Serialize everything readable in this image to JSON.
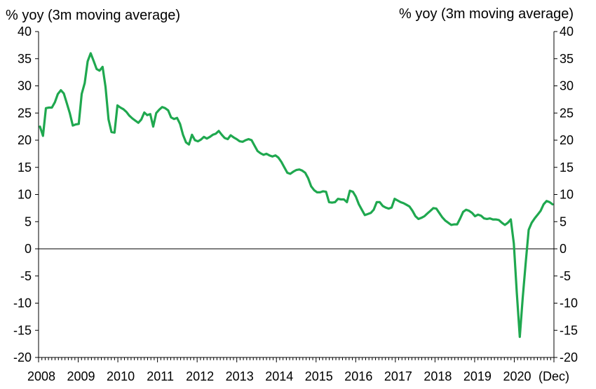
{
  "chart_data": {
    "type": "line",
    "left_axis_label": "% yoy (3m moving average)",
    "right_axis_label": "% yoy (3m moving average)",
    "ylim": [
      -20,
      40
    ],
    "y_ticks": [
      40,
      35,
      30,
      25,
      20,
      15,
      10,
      5,
      0,
      -5,
      -10,
      -15,
      -20
    ],
    "x_tick_labels": [
      "2008",
      "2009",
      "2010",
      "2011",
      "2012",
      "2013",
      "2014",
      "2015",
      "2016",
      "2017",
      "2018",
      "2019",
      "2020",
      "(Dec)"
    ],
    "x_start_year": 2008,
    "x_end_year": 2021,
    "grid": false,
    "zero_line": true,
    "series_color": "#1fa84f",
    "series": [
      {
        "values": [
          22.5,
          20.8,
          25.9,
          26.0,
          26.0,
          27.0,
          28.5,
          29.2,
          28.6,
          26.8,
          25.0,
          22.7,
          22.9,
          23.0,
          28.5,
          30.5,
          34.5,
          36.0,
          34.6,
          33.1,
          32.8,
          33.5,
          29.8,
          23.8,
          21.5,
          21.4,
          26.4,
          26.0,
          25.7,
          25.2,
          24.5,
          24.0,
          23.6,
          23.2,
          23.8,
          25.1,
          24.6,
          24.8,
          22.5,
          25.0,
          25.6,
          26.1,
          25.9,
          25.5,
          24.2,
          23.9,
          24.1,
          23.0,
          21.0,
          19.6,
          19.2,
          21.0,
          20.0,
          19.8,
          20.1,
          20.6,
          20.3,
          20.6,
          21.0,
          21.2,
          21.7,
          21.0,
          20.4,
          20.2,
          20.9,
          20.5,
          20.2,
          19.8,
          19.7,
          20.0,
          20.2,
          20.0,
          19.0,
          18.0,
          17.6,
          17.3,
          17.5,
          17.2,
          17.0,
          17.2,
          16.8,
          16.0,
          15.0,
          14.0,
          13.8,
          14.2,
          14.5,
          14.6,
          14.4,
          14.0,
          13.0,
          11.5,
          10.8,
          10.4,
          10.4,
          10.6,
          10.5,
          8.6,
          8.5,
          8.6,
          9.2,
          9.1,
          9.1,
          8.6,
          10.7,
          10.5,
          9.6,
          8.2,
          7.2,
          6.2,
          6.4,
          6.6,
          7.2,
          8.6,
          8.6,
          7.9,
          7.6,
          7.4,
          7.6,
          9.2,
          8.9,
          8.6,
          8.4,
          8.1,
          7.8,
          7.0,
          6.0,
          5.5,
          5.7,
          6.0,
          6.5,
          7.0,
          7.5,
          7.4,
          6.6,
          5.8,
          5.2,
          4.8,
          4.4,
          4.5,
          4.5,
          5.6,
          6.8,
          7.2,
          7.0,
          6.6,
          6.0,
          6.3,
          6.1,
          5.6,
          5.5,
          5.6,
          5.4,
          5.4,
          5.3,
          4.8,
          4.4,
          4.8,
          5.4,
          1.0,
          -8.0,
          -16.2,
          -9.0,
          -2.5,
          3.5,
          4.8,
          5.6,
          6.3,
          7.0,
          8.2,
          8.8,
          8.6,
          8.2
        ]
      }
    ]
  }
}
